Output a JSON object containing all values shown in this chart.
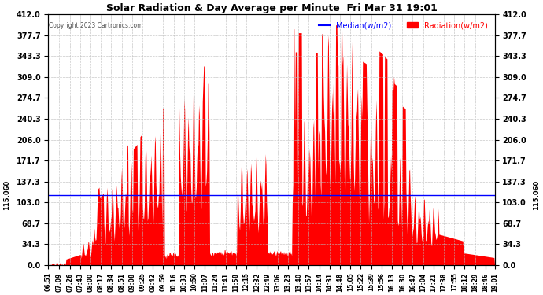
{
  "title": "Solar Radiation & Day Average per Minute  Fri Mar 31 19:01",
  "copyright": "Copyright 2023 Cartronics.com",
  "median_value": 115.06,
  "median_label": "Median(w/m2)",
  "radiation_label": "Radiation(w/m2)",
  "y_max": 412.0,
  "y_min": 0.0,
  "y_ticks": [
    0.0,
    34.3,
    68.7,
    103.0,
    137.3,
    171.7,
    206.0,
    240.3,
    274.7,
    309.0,
    343.3,
    377.7,
    412.0
  ],
  "left_y_label": "115.060",
  "right_y_label": "115.060",
  "background_color": "#ffffff",
  "fill_color": "#ff0000",
  "median_color": "#0000ff",
  "grid_color": "#bbbbbb",
  "title_color": "#000000",
  "x_start": "06:51",
  "x_end": "19:01",
  "x_tick_labels": [
    "06:51",
    "07:09",
    "07:26",
    "07:43",
    "08:00",
    "08:17",
    "08:34",
    "08:51",
    "09:08",
    "09:25",
    "09:42",
    "09:59",
    "10:16",
    "10:33",
    "10:50",
    "11:07",
    "11:24",
    "11:41",
    "11:58",
    "12:15",
    "12:32",
    "12:49",
    "13:06",
    "13:23",
    "13:40",
    "13:57",
    "14:14",
    "14:31",
    "14:48",
    "15:05",
    "15:22",
    "15:39",
    "15:56",
    "16:13",
    "16:30",
    "16:47",
    "17:04",
    "17:21",
    "17:38",
    "17:55",
    "18:12",
    "18:29",
    "18:46",
    "19:01"
  ]
}
